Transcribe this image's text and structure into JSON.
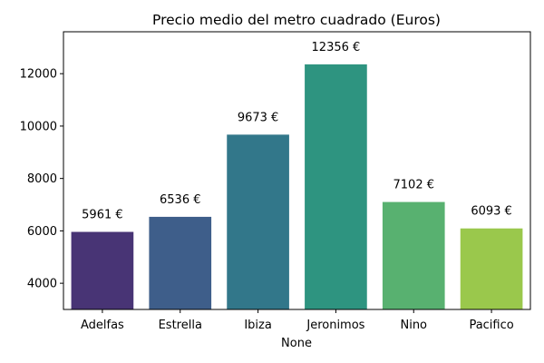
{
  "chart_data": {
    "type": "bar",
    "title": "Precio medio del metro cuadrado (Euros)",
    "xlabel": "None",
    "ylabel": "",
    "categories": [
      "Adelfas",
      "Estrella",
      "Ibiza",
      "Jeronimos",
      "Nino",
      "Pacifico"
    ],
    "values": [
      5961,
      6536,
      9673,
      12356,
      7102,
      6093
    ],
    "data_labels": [
      "5961 €",
      "6536 €",
      "9673 €",
      "12356 €",
      "7102 €",
      "6093 €"
    ],
    "colors": [
      "#483475",
      "#3e5e8a",
      "#32778a",
      "#2e9480",
      "#58b170",
      "#9ac84c"
    ],
    "ylim": [
      3000,
      13600
    ],
    "yticks": [
      4000,
      6000,
      8000,
      10000,
      12000
    ],
    "ytick_labels": [
      "4000",
      "6000",
      "8000",
      "10000",
      "12000"
    ],
    "grid": false,
    "legend": "none"
  }
}
